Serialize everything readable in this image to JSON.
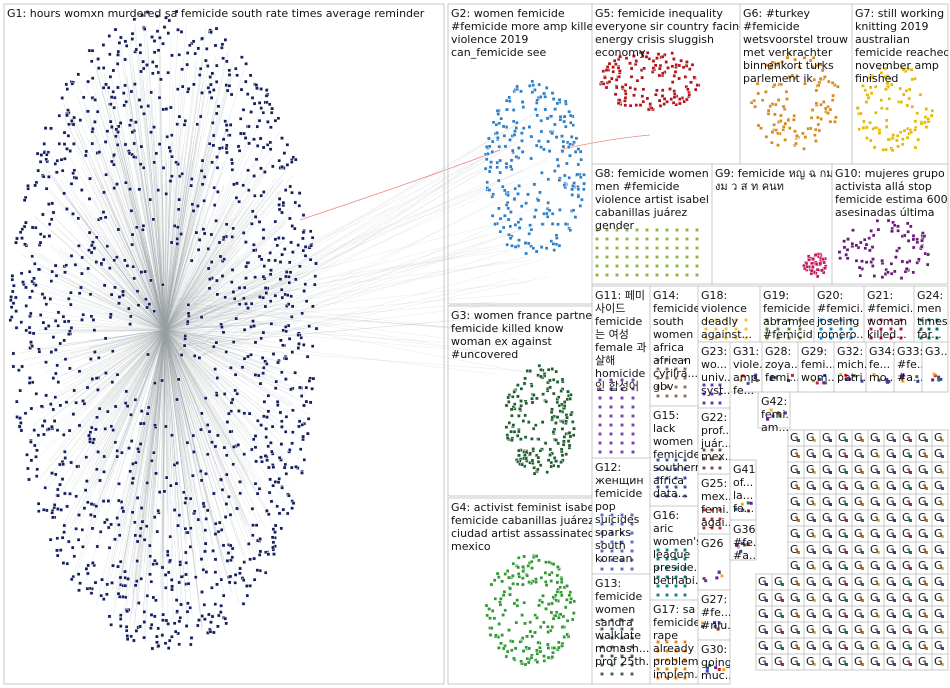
{
  "groups": [
    {
      "id": "G1",
      "lines": [
        "G1: hours womxn murdered sa femicide south rate times average reminder"
      ],
      "color": "#14205e",
      "count": 1400
    },
    {
      "id": "G2",
      "lines": [
        "G2: women femicide",
        "#femicide more amp killed",
        "violence 2019",
        "can_femicide see"
      ],
      "color": "#2c7fc9",
      "count": 260
    },
    {
      "id": "G3",
      "lines": [
        "G3: women france partner",
        "femicide killed know",
        "woman ex against",
        "#uncovered"
      ],
      "color": "#1f5e2f",
      "count": 200
    },
    {
      "id": "G4",
      "lines": [
        "G4: activist feminist isabel",
        "femicide cabanillas juárez",
        "ciudad artist assassinated",
        "mexico"
      ],
      "color": "#2e9a31",
      "count": 200
    },
    {
      "id": "G5",
      "lines": [
        "G5: femicide inequality",
        "everyone sir country facing",
        "energy crisis sluggish",
        "economy"
      ],
      "color": "#b3141a",
      "count": 150
    },
    {
      "id": "G6",
      "lines": [
        "G6: #turkey",
        "#femicide",
        "wetsvoorstel trouw",
        "met verkrachter",
        "binnenkort turks",
        "parlement ik"
      ],
      "color": "#d98a1e",
      "count": 120
    },
    {
      "id": "G7",
      "lines": [
        "G7: still working",
        "knitting 2019",
        "australian",
        "femicide reached",
        "november amp",
        "finished"
      ],
      "color": "#e6b800",
      "count": 100
    },
    {
      "id": "G8",
      "lines": [
        "G8: femicide women",
        "men #femicide",
        "violence artist isabel",
        "cabanillas juárez",
        "gender"
      ],
      "color": "#8fb53a",
      "count": 160
    },
    {
      "id": "G9",
      "lines": [
        "G9: femicide หญ ฉ กม",
        "งม ว ส ท คนท"
      ],
      "color": "#c2185b",
      "count": 60
    },
    {
      "id": "G10",
      "lines": [
        "G10: mujeres grupo",
        "activista allá stop",
        "femicide estima 600",
        "asesinadas última"
      ],
      "color": "#6a1b7a",
      "count": 90
    },
    {
      "id": "G11",
      "lines": [
        "G11: 페미",
        "사이드",
        "femicide",
        "는 여성",
        "female 과",
        "살해",
        "homicide",
        "인 합성어"
      ],
      "color": "#7b3fb0",
      "count": 45
    },
    {
      "id": "G12",
      "lines": [
        "G12:",
        "женщин",
        "femicide",
        "pop",
        "suicides",
        "sparks",
        "south",
        "korean"
      ],
      "color": "#5c6bc0",
      "count": 40
    },
    {
      "id": "G13",
      "lines": [
        "G13:",
        "femicide",
        "women",
        "sandra",
        "walklate",
        "monash...",
        "prof 25th..."
      ],
      "color": "#455a64",
      "count": 35
    },
    {
      "id": "G14",
      "lines": [
        "G14:",
        "femicide",
        "south",
        "women",
        "africa",
        "african",
        "cyrilra...",
        "gbv"
      ],
      "color": "#8d6e63",
      "count": 40
    },
    {
      "id": "G15",
      "lines": [
        "G15:",
        "lack",
        "women",
        "femicide",
        "southern",
        "africa",
        "data..."
      ],
      "color": "#3949ab",
      "count": 35
    },
    {
      "id": "G16",
      "lines": [
        "G16:",
        "aric",
        "women's",
        "league",
        "preside...",
        "bethabi..."
      ],
      "color": "#00897b",
      "count": 30
    },
    {
      "id": "G17",
      "lines": [
        "G17: sa",
        "femicide",
        "rape",
        "already",
        "problem",
        "implem..."
      ],
      "color": "#f57c00",
      "count": 30
    },
    {
      "id": "G18",
      "lines": [
        "G18:",
        "violence",
        "deadly",
        "against..."
      ],
      "color": "#fbc02d",
      "count": 25
    },
    {
      "id": "G19",
      "lines": [
        "G19:",
        "femicide",
        "abramjee",
        "#femicid..."
      ],
      "color": "#558b2f",
      "count": 25
    },
    {
      "id": "G20",
      "lines": [
        "G20:",
        "#femici...",
        "joseling",
        "romero..."
      ],
      "color": "#0288d1",
      "count": 25
    },
    {
      "id": "G21",
      "lines": [
        "G21:",
        "#femici...",
        "woman",
        "killed..."
      ],
      "color": "#ad1457",
      "count": 25
    },
    {
      "id": "G22",
      "lines": [
        "G22:",
        "prof...",
        "juár...",
        "mex..."
      ],
      "color": "#6d4c41",
      "count": 20
    },
    {
      "id": "G23",
      "lines": [
        "G23:",
        "wo...",
        "univ...",
        "syst..."
      ],
      "color": "#5e35b1",
      "count": 20
    },
    {
      "id": "G24",
      "lines": [
        "G24:",
        "men",
        "times",
        "far..."
      ],
      "color": "#00695c",
      "count": 20
    },
    {
      "id": "G25",
      "lines": [
        "G25:",
        "mex...",
        "femi...",
        "agai..."
      ],
      "color": "#c62828",
      "count": 20
    }
  ],
  "small_groups": [
    {
      "id": "G26",
      "lines": [
        "G26"
      ]
    },
    {
      "id": "G27",
      "lines": [
        "G27:",
        "#fe...",
        "#niu..."
      ]
    },
    {
      "id": "G28",
      "lines": [
        "G28:",
        "zoya...",
        "femi..."
      ]
    },
    {
      "id": "G29",
      "lines": [
        "G29:",
        "femi...",
        "wom..."
      ]
    },
    {
      "id": "G30",
      "lines": [
        "G30:",
        "going",
        "muc..."
      ]
    },
    {
      "id": "G31",
      "lines": [
        "G31:",
        "viole...",
        "amp...",
        "fe..."
      ]
    },
    {
      "id": "G32",
      "lines": [
        "G32:",
        "mich...",
        "patri..."
      ]
    },
    {
      "id": "G33",
      "lines": [
        "G33:",
        "#fe...",
        "#a..."
      ]
    },
    {
      "id": "G34",
      "lines": [
        "G34:",
        "fe...",
        "mo..."
      ]
    },
    {
      "id": "G35",
      "lines": [
        "G3..."
      ]
    },
    {
      "id": "G36",
      "lines": [
        "G36:",
        "#fe...",
        "#a..."
      ]
    },
    {
      "id": "G41",
      "lines": [
        "G41:",
        "of...",
        "la...",
        "fe..."
      ]
    },
    {
      "id": "G42",
      "lines": [
        "G42:",
        "femi...",
        "am..."
      ]
    }
  ],
  "filler_label": "G",
  "colors": {
    "edge": "#9aa0a6",
    "box": "#c8c8c8",
    "highlight_edge": "#e53935",
    "text": "#111111"
  }
}
